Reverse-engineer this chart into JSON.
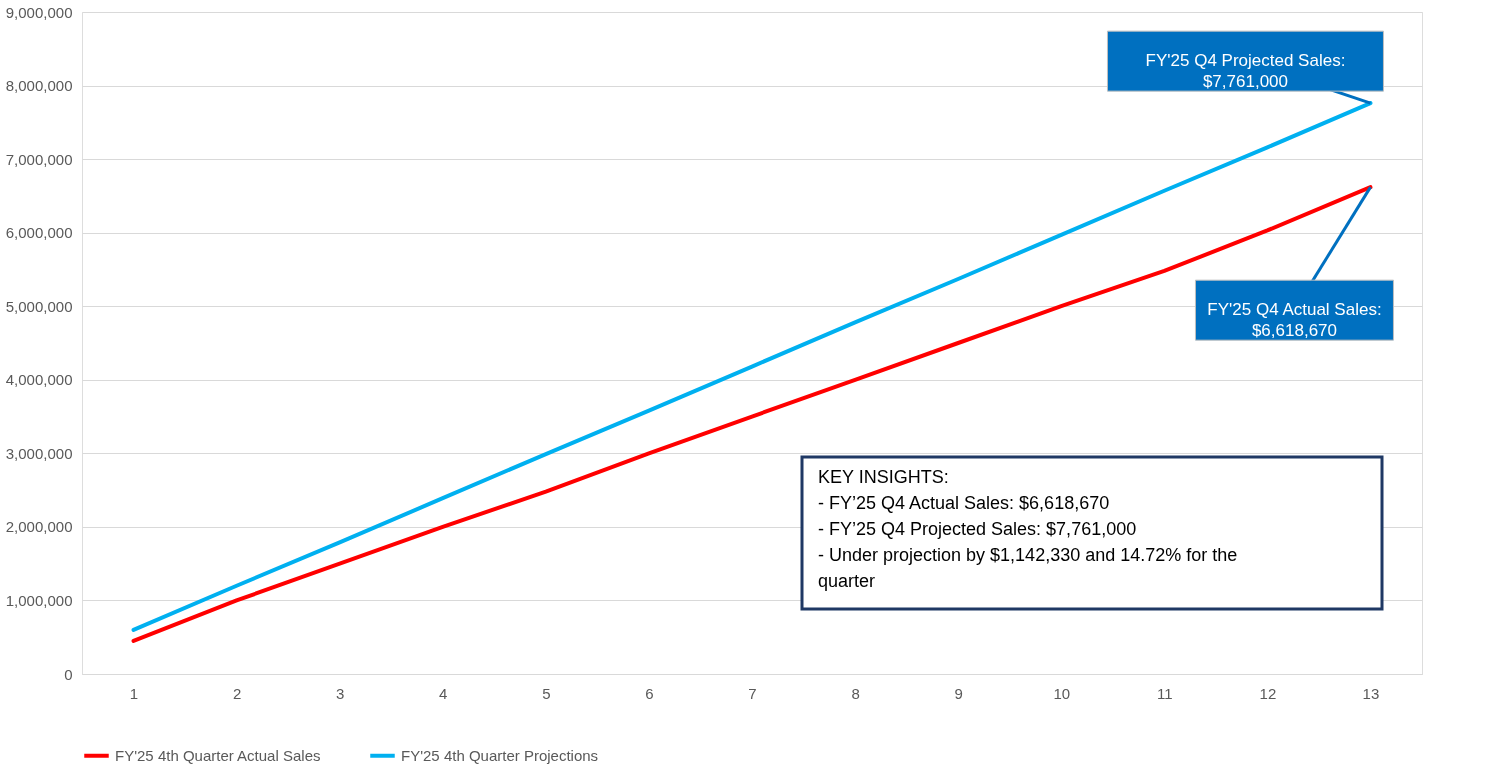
{
  "chart_data": {
    "type": "line",
    "categories": [
      "1",
      "2",
      "3",
      "4",
      "5",
      "6",
      "7",
      "8",
      "9",
      "10",
      "11",
      "12",
      "13"
    ],
    "series": [
      {
        "name": "FY'25 4th Quarter Actual Sales",
        "color": "#ff0000",
        "values": [
          450000,
          1000000,
          1500000,
          2000000,
          2480000,
          3000000,
          3500000,
          4000000,
          4500000,
          5000000,
          5480000,
          6030000,
          6618670
        ]
      },
      {
        "name": "FY'25 4th Quarter Projections",
        "color": "#00b0f0",
        "values": [
          600000,
          1200000,
          1790000,
          2390000,
          2990000,
          3580000,
          4180000,
          4780000,
          5370000,
          5970000,
          6570000,
          7160000,
          7761000
        ]
      }
    ],
    "ylim": [
      0,
      9000000
    ],
    "yticks": [
      0,
      {
        "value": 1000000,
        "label": "1,000,000"
      },
      {
        "value": 2000000,
        "label": "2,000,000"
      },
      {
        "value": 3000000,
        "label": "3,000,000"
      },
      {
        "value": 4000000,
        "label": "4,000,000"
      },
      {
        "value": 5000000,
        "label": "5,000,000"
      },
      {
        "value": 6000000,
        "label": "6,000,000"
      },
      {
        "value": 7000000,
        "label": "7,000,000"
      },
      {
        "value": 8000000,
        "label": "8,000,000"
      },
      {
        "value": 9000000,
        "label": "9,000,000"
      }
    ],
    "grid": "y",
    "legend": "bottom",
    "marker": "none",
    "line_style": "solid",
    "annotations": [
      {
        "text": "FY'25 Q4 Projected Sales:\n$7,761,000",
        "x": "13",
        "y": 7761000
      },
      {
        "text": "FY'25 Q4 Actual Sales:\n$6,618,670",
        "x": "13",
        "y": 6618670
      },
      "KEY INSIGHTS:\n-     FY’25 Q4 Actual Sales: $6,618,670\n-     FY’25 Q4 Projected Sales: $7,761,000\n-     Under projection by $1,142,330 and 14.72% for the\n       quarter"
    ]
  }
}
